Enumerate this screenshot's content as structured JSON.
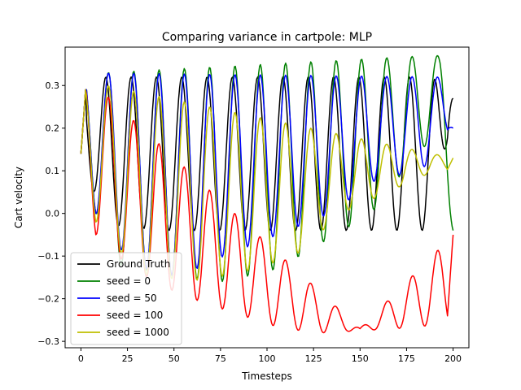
{
  "chart_data": {
    "type": "line",
    "title": "Comparing variance in cartpole: MLP",
    "xlabel": "Timesteps",
    "ylabel": "Cart velocity",
    "xlim": [
      -8.5,
      208.5
    ],
    "ylim": [
      -0.315,
      0.39
    ],
    "xticks": [
      0,
      25,
      50,
      75,
      100,
      125,
      150,
      175,
      200
    ],
    "xtick_labels": [
      "0",
      "25",
      "50",
      "75",
      "100",
      "125",
      "150",
      "175",
      "200"
    ],
    "yticks": [
      -0.3,
      -0.2,
      -0.1,
      0.0,
      0.1,
      0.2,
      0.3
    ],
    "ytick_labels": [
      "−0.3",
      "−0.2",
      "−0.1",
      "0.0",
      "0.1",
      "0.2",
      "0.3"
    ],
    "grid": false,
    "legend_position": "lower-left",
    "series_description": "Oscillating cart velocity over 200 timesteps (approx. period 13.6 steps) for the ground truth and four model seeds; model curves drift away from the ground truth over time.",
    "series": [
      {
        "name": "Ground Truth",
        "color": "#000000",
        "keypoints": [
          [
            0,
            0.14
          ],
          [
            7,
            0.32
          ],
          [
            13,
            -0.03
          ],
          [
            20,
            0.32
          ],
          [
            26,
            -0.03
          ],
          [
            34,
            0.32
          ],
          [
            40,
            -0.04
          ],
          [
            47,
            0.32
          ],
          [
            54,
            -0.04
          ],
          [
            61,
            0.32
          ],
          [
            68,
            -0.04
          ],
          [
            74,
            0.32
          ],
          [
            81,
            -0.04
          ],
          [
            88,
            0.32
          ],
          [
            95,
            -0.04
          ],
          [
            102,
            0.32
          ],
          [
            108,
            -0.04
          ],
          [
            115,
            0.32
          ],
          [
            122,
            -0.04
          ],
          [
            129,
            0.32
          ],
          [
            136,
            -0.04
          ],
          [
            142,
            0.32
          ],
          [
            149,
            -0.04
          ],
          [
            156,
            0.32
          ],
          [
            163,
            -0.04
          ],
          [
            170,
            0.32
          ],
          [
            176,
            -0.04
          ],
          [
            183,
            0.32
          ],
          [
            190,
            -0.04
          ],
          [
            197,
            0.31
          ],
          [
            200,
            0.27
          ]
        ],
        "mean": 0.14,
        "amp": 0.18,
        "drift": 0.0,
        "end": 0.27
      },
      {
        "name": "seed = 0",
        "color": "#008000",
        "keypoints": [
          [
            0,
            0.14
          ],
          [
            3,
            0.33
          ],
          [
            8,
            0.0
          ],
          [
            13,
            0.33
          ],
          [
            20,
            -0.12
          ],
          [
            53,
            -0.15
          ],
          [
            77,
            -0.16
          ],
          [
            106,
            -0.13
          ],
          [
            133,
            -0.06
          ],
          [
            156,
            0.0
          ],
          [
            170,
            0.08
          ],
          [
            186,
            0.37
          ],
          [
            193,
            0.2
          ],
          [
            200,
            -0.04
          ]
        ],
        "mean": 0.09,
        "amp": 0.21,
        "drift": 0.0,
        "end": -0.04
      },
      {
        "name": "seed = 50",
        "color": "#0000ff",
        "keypoints": [
          [
            0,
            0.14
          ],
          [
            3,
            0.33
          ],
          [
            8,
            0.0
          ],
          [
            27,
            -0.12
          ],
          [
            52,
            -0.15
          ],
          [
            77,
            -0.1
          ],
          [
            106,
            -0.05
          ],
          [
            134,
            0.0
          ],
          [
            159,
            0.08
          ],
          [
            183,
            0.1
          ],
          [
            192,
            0.32
          ],
          [
            200,
            0.2
          ]
        ],
        "mean": 0.09,
        "amp": 0.2,
        "drift": 0.0,
        "end": 0.2
      },
      {
        "name": "seed = 100",
        "color": "#ff0000",
        "keypoints": [
          [
            0,
            0.14
          ],
          [
            3,
            0.32
          ],
          [
            8,
            -0.05
          ],
          [
            27,
            -0.13
          ],
          [
            53,
            -0.19
          ],
          [
            80,
            -0.23
          ],
          [
            108,
            -0.27
          ],
          [
            130,
            -0.28
          ],
          [
            150,
            -0.27
          ],
          [
            170,
            -0.27
          ],
          [
            195,
            -0.26
          ],
          [
            200,
            -0.05
          ]
        ],
        "mean": 0.09,
        "amp": 0.2,
        "drift": 0.0,
        "end": -0.05
      },
      {
        "name": "seed = 1000",
        "color": "#bfbf00",
        "keypoints": [
          [
            0,
            0.14
          ],
          [
            3,
            0.31
          ],
          [
            8,
            -0.02
          ],
          [
            30,
            -0.14
          ],
          [
            58,
            -0.16
          ],
          [
            86,
            -0.14
          ],
          [
            115,
            -0.1
          ],
          [
            140,
            0.0
          ],
          [
            165,
            0.05
          ],
          [
            190,
            0.1
          ],
          [
            200,
            0.13
          ]
        ],
        "mean": 0.09,
        "amp": 0.16,
        "drift": 0.0,
        "end": 0.13
      }
    ]
  }
}
